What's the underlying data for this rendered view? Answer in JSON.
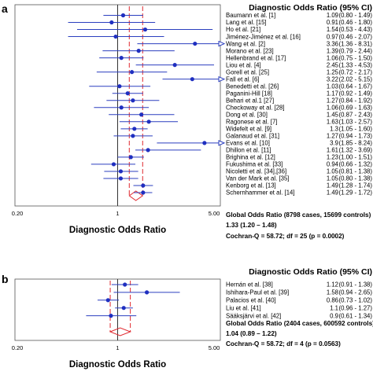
{
  "chart_data": [
    {
      "type": "forest",
      "panel_label": "a",
      "title": "Diagnostic Odds Ratio (95% CI)",
      "xlabel": "Diagnostic Odds Ratio",
      "x_scale": "log",
      "xlim": [
        0.2,
        5.0
      ],
      "tick_labels": [
        "0.20",
        "1",
        "5.00"
      ],
      "tick_values": [
        0.2,
        1,
        5.0
      ],
      "studies": [
        {
          "name": "Baumann et al. [1]",
          "or": 1.09,
          "ci": "(0.80 - 1.49)",
          "lo": 0.8,
          "hi": 1.49
        },
        {
          "name": "Lang et al. [15]",
          "or": 0.91,
          "ci": "(0.46 - 1.80)",
          "lo": 0.46,
          "hi": 1.8
        },
        {
          "name": "Ho et al. [21]",
          "or": 1.54,
          "ci": "(0.53 - 4.43)",
          "lo": 0.53,
          "hi": 4.43
        },
        {
          "name": "Jiménez-Jiménez et al. [16]",
          "or": 0.97,
          "ci": "(0.46 - 2.07)",
          "lo": 0.46,
          "hi": 2.07
        },
        {
          "name": "Wang et al. [2]",
          "or": 3.36,
          "ci": "(1.36 - 8.31)",
          "lo": 1.36,
          "hi": 8.31
        },
        {
          "name": "Morano et al. [23]",
          "or": 1.39,
          "ci": "(0.79 - 2.44)",
          "lo": 0.79,
          "hi": 2.44
        },
        {
          "name": "Hellenbrand et al. [17]",
          "or": 1.06,
          "ci": "(0.75 - 1.50)",
          "lo": 0.75,
          "hi": 1.5
        },
        {
          "name": "Liou et al. [4]",
          "or": 2.45,
          "ci": "(1.33 - 4.53)",
          "lo": 1.33,
          "hi": 4.53
        },
        {
          "name": "Gorell et al. [25]",
          "or": 1.25,
          "ci": "(0.72 - 2.17)",
          "lo": 0.72,
          "hi": 2.17
        },
        {
          "name": "Fall et al. [6]",
          "or": 3.22,
          "ci": "(2.02 - 5.15)",
          "lo": 2.02,
          "hi": 5.15
        },
        {
          "name": "Benedetti et al. [26]",
          "or": 1.03,
          "ci": "(0.64 - 1.67)",
          "lo": 0.64,
          "hi": 1.67
        },
        {
          "name": "Paganini-Hill [18]",
          "or": 1.17,
          "ci": "(0.92 - 1.49)",
          "lo": 0.92,
          "hi": 1.49
        },
        {
          "name": "Behari et al.1 [27]",
          "or": 1.27,
          "ci": "(0.84 - 1.92)",
          "lo": 0.84,
          "hi": 1.92
        },
        {
          "name": "Checkoway et al. [28]",
          "or": 1.06,
          "ci": "(0.69 - 1.63)",
          "lo": 0.69,
          "hi": 1.63
        },
        {
          "name": "Dong et al. [30]",
          "or": 1.45,
          "ci": "(0.87 - 2.43)",
          "lo": 0.87,
          "hi": 2.43
        },
        {
          "name": "Ragonese et al. [7]",
          "or": 1.63,
          "ci": "(1.03 - 2.57)",
          "lo": 1.03,
          "hi": 2.57
        },
        {
          "name": "Widefelt et al. [9]",
          "or": 1.3,
          "ci": "(1.05 - 1.60)",
          "lo": 1.05,
          "hi": 1.6
        },
        {
          "name": "Galanaud et al. [31]",
          "or": 1.27,
          "ci": "(0.94 - 1.73)",
          "lo": 0.94,
          "hi": 1.73
        },
        {
          "name": "Evans et al. [10]",
          "or": 3.9,
          "ci": "(1.85 - 8.24)",
          "lo": 1.85,
          "hi": 8.24
        },
        {
          "name": "Dhillon et al. [11]",
          "or": 1.61,
          "ci": "(1.32 - 3.69)",
          "lo": 1.32,
          "hi": 3.69
        },
        {
          "name": "Brighina et al. [12]",
          "or": 1.23,
          "ci": "(1.00 - 1.51)",
          "lo": 1.0,
          "hi": 1.51
        },
        {
          "name": "Fukushima et al. [33]",
          "or": 0.94,
          "ci": "(0.66 - 1.32)",
          "lo": 0.66,
          "hi": 1.32
        },
        {
          "name": "Nicoletti et al. [34],[36]",
          "or": 1.05,
          "ci": "(0.81 - 1.38)",
          "lo": 0.81,
          "hi": 1.38
        },
        {
          "name": "Van der Mark et al. [35]",
          "or": 1.05,
          "ci": "(0.80 - 1.38)",
          "lo": 0.8,
          "hi": 1.38
        },
        {
          "name": "Kenborg et al. [13]",
          "or": 1.49,
          "ci": "(1.28 - 1.74)",
          "lo": 1.28,
          "hi": 1.74
        },
        {
          "name": "Schernhammer et al. [14]",
          "or": 1.49,
          "ci": "(1.29 - 1.72)",
          "lo": 1.29,
          "hi": 1.72
        }
      ],
      "pooled": {
        "or": 1.33,
        "lo": 1.2,
        "hi": 1.48
      },
      "summary_lines": [
        "Global Odds Ratio (8798 cases, 15699 controls)",
        "1.33 (1.20 – 1.48)",
        "Cochran-Q = 58.72; df = 25 (p = 0.0002)"
      ]
    },
    {
      "type": "forest",
      "panel_label": "b",
      "title": "Diagnostic Odds Ratio (95% CI)",
      "xlabel": "Diagnostic Odds Ratio",
      "x_scale": "log",
      "xlim": [
        0.2,
        5.0
      ],
      "tick_labels": [
        "0.20",
        "1",
        "5.00"
      ],
      "tick_values": [
        0.2,
        1,
        5.0
      ],
      "studies": [
        {
          "name": "Hernán et al. [38]",
          "or": 1.12,
          "ci": "(0.91 - 1.38)",
          "lo": 0.91,
          "hi": 1.38
        },
        {
          "name": "Ishihara-Paul et al. [39]",
          "or": 1.58,
          "ci": "(0.94 - 2.65)",
          "lo": 0.94,
          "hi": 2.65
        },
        {
          "name": "Palacios et al. [40]",
          "or": 0.86,
          "ci": "(0.73 - 1.02)",
          "lo": 0.73,
          "hi": 1.02
        },
        {
          "name": "Liu et al. [41]",
          "or": 1.1,
          "ci": "(0.96 - 1.27)",
          "lo": 0.96,
          "hi": 1.27
        },
        {
          "name": "Sääksjärvi et al. [42]",
          "or": 0.9,
          "ci": "(0.61 - 1.34)",
          "lo": 0.61,
          "hi": 1.34
        }
      ],
      "pooled": {
        "or": 1.04,
        "lo": 0.89,
        "hi": 1.22
      },
      "summary_lines": [
        "Global Odds Ratio (2404 cases, 600592 controls)",
        "1.04 (0.89 – 1.22)",
        "Cochran-Q = 58.72; df = 4 (p = 0.0563)"
      ]
    }
  ]
}
